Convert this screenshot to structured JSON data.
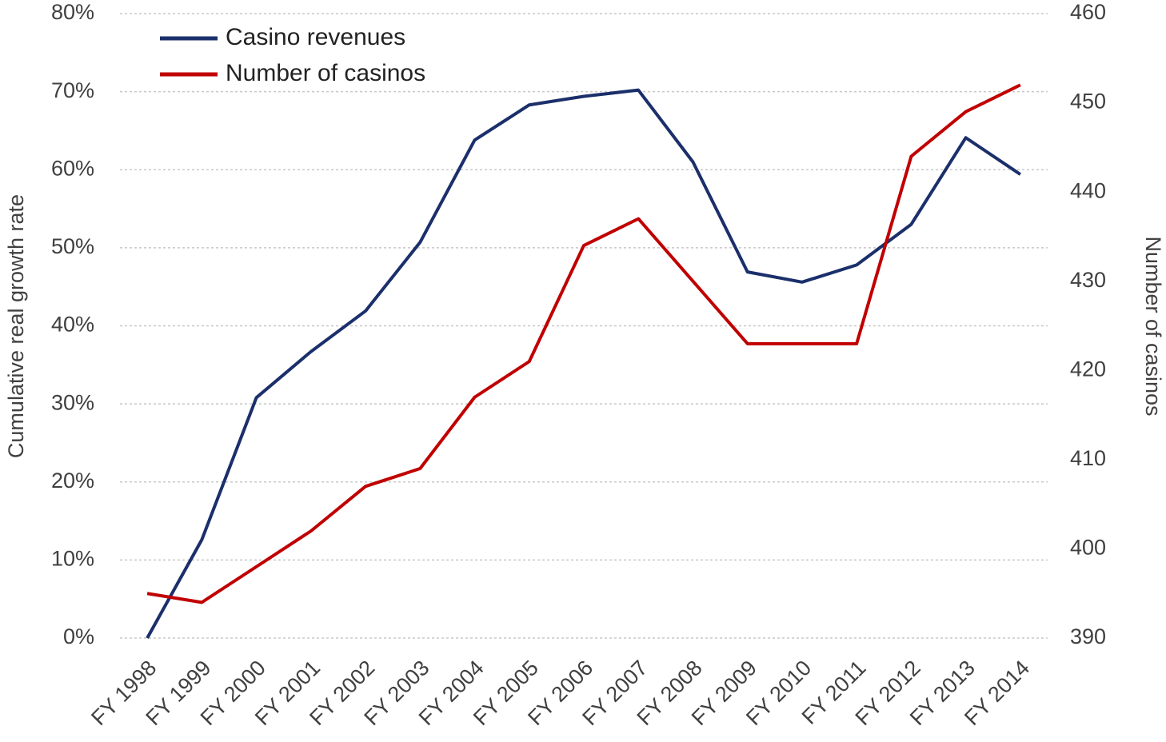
{
  "chart_data": {
    "type": "line",
    "categories": [
      "FY 1998",
      "FY 1999",
      "FY 2000",
      "FY 2001",
      "FY 2002",
      "FY 2003",
      "FY 2004",
      "FY 2005",
      "FY 2006",
      "FY 2007",
      "FY 2008",
      "FY 2009",
      "FY 2010",
      "FY 2011",
      "FY 2012",
      "FY 2013",
      "FY 2014"
    ],
    "series": [
      {
        "name": "Casino revenues",
        "color": "#1b2f6b",
        "axis": "y",
        "values": [
          0,
          12.6,
          30.8,
          36.7,
          41.9,
          50.7,
          63.8,
          68.3,
          69.4,
          70.2,
          61.0,
          46.9,
          45.6,
          47.8,
          53.0,
          64.1,
          59.4
        ]
      },
      {
        "name": "Number of casinos",
        "color": "#c00000",
        "axis": "y2",
        "values": [
          395,
          394,
          398,
          402,
          407,
          409,
          417,
          421,
          434,
          437,
          430,
          423,
          423,
          423,
          444,
          449,
          452
        ]
      }
    ],
    "ylabel": "Cumulative real growth rate",
    "y2label": "Number of casinos",
    "ylim": [
      0,
      80
    ],
    "yticks": [
      {
        "value": 0,
        "label": "0%"
      },
      {
        "value": 10,
        "label": "10%"
      },
      {
        "value": 20,
        "label": "20%"
      },
      {
        "value": 30,
        "label": "30%"
      },
      {
        "value": 40,
        "label": "40%"
      },
      {
        "value": 50,
        "label": "50%"
      },
      {
        "value": 60,
        "label": "60%"
      },
      {
        "value": 70,
        "label": "70%"
      },
      {
        "value": 80,
        "label": "80%"
      }
    ],
    "y2lim": [
      390,
      460
    ],
    "y2ticks": [
      390,
      400,
      410,
      420,
      430,
      440,
      450,
      460
    ],
    "grid": true,
    "legend": "upper left"
  }
}
